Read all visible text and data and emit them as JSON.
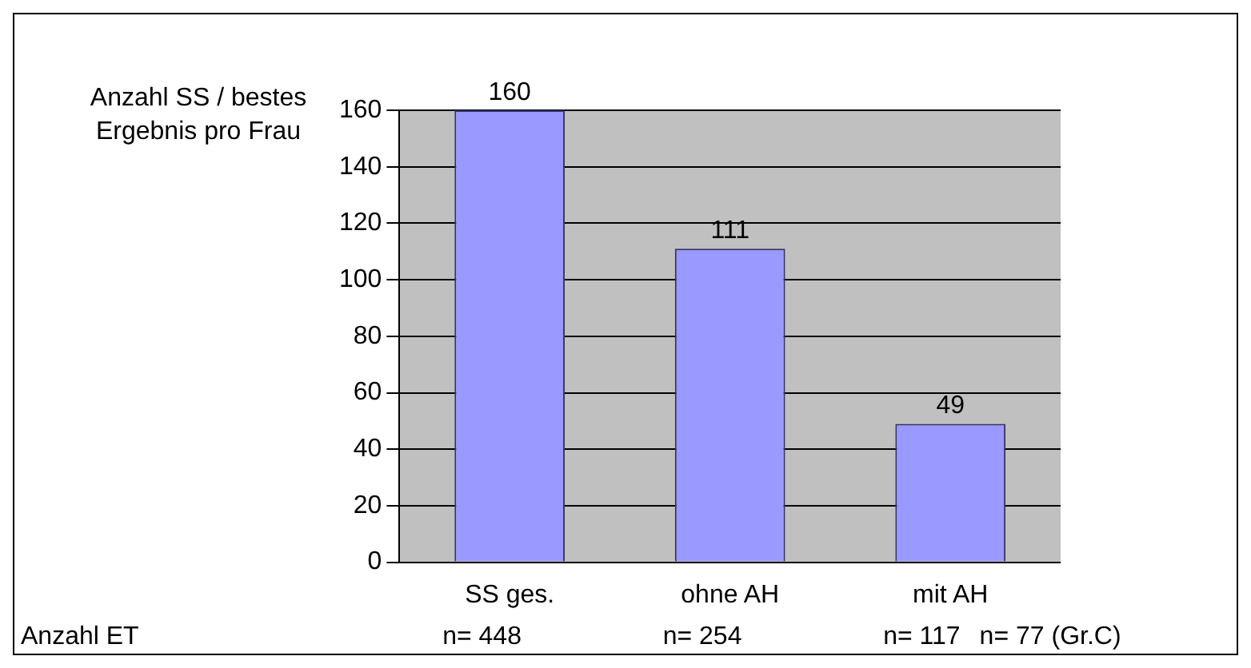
{
  "chart_data": {
    "type": "bar",
    "ylabel": "Anzahl SS / bestes Ergebnis pro Frau",
    "categories": [
      "SS ges.",
      "ohne AH",
      "mit AH"
    ],
    "values": [
      160,
      111,
      49
    ],
    "color": "#9999ff",
    "ylim": [
      0,
      160
    ],
    "yticks": [
      0,
      20,
      40,
      60,
      80,
      100,
      120,
      140,
      160
    ],
    "grid": "y",
    "data_labels": true,
    "annotations": [
      "Anzahl ET",
      "n= 448",
      "n= 254",
      "n= 117",
      "n= 77 (Gr.C)"
    ]
  }
}
